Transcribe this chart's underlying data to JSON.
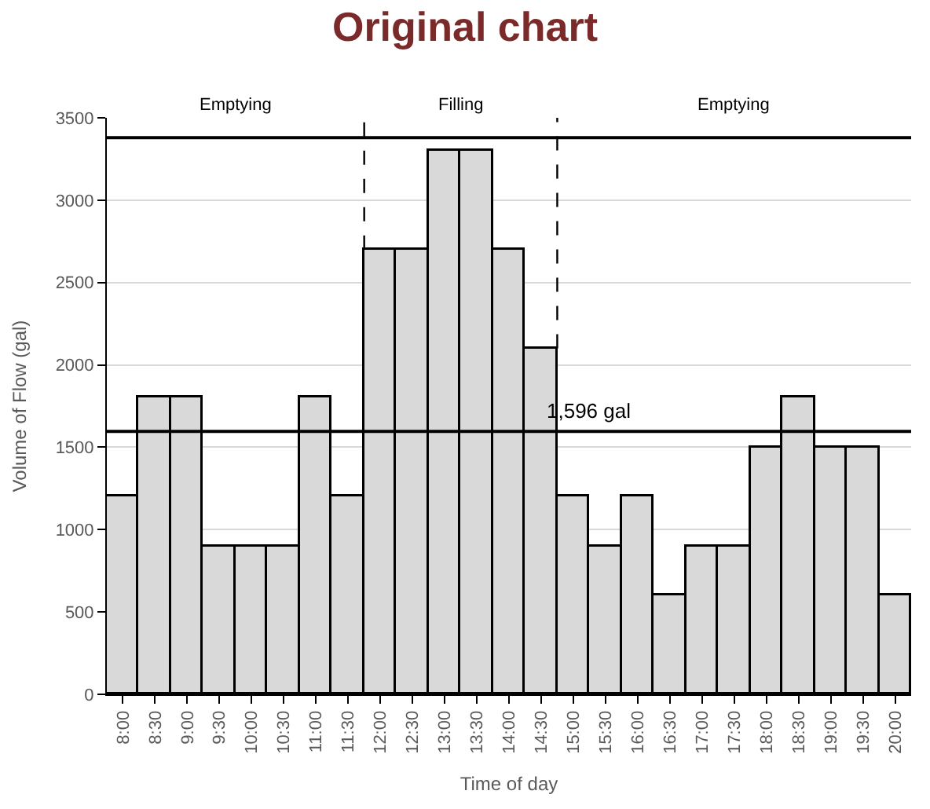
{
  "chart_data": {
    "type": "bar",
    "title": "Original chart",
    "xlabel": "Time of day",
    "ylabel": "Volume of Flow (gal)",
    "x": [
      8,
      8.5,
      9,
      9.5,
      10,
      10.5,
      11,
      11.5,
      12,
      12.5,
      13,
      13.5,
      14,
      14.5,
      15,
      15.5,
      16,
      16.5,
      17,
      17.5,
      18,
      18.5,
      19,
      19.5,
      20
    ],
    "values": [
      1200,
      1800,
      1800,
      900,
      900,
      900,
      1800,
      1200,
      2700,
      2700,
      3300,
      3300,
      2700,
      2100,
      1200,
      900,
      1200,
      600,
      900,
      900,
      1500,
      1800,
      1500,
      1500,
      600
    ],
    "color": "#d9d9d9",
    "xlim": [
      7.75,
      20.25
    ],
    "xticks": [
      {
        "value": 8,
        "label": "8:00"
      },
      {
        "value": 8.5,
        "label": "8:30"
      },
      {
        "value": 9,
        "label": "9:00"
      },
      {
        "value": 9.5,
        "label": "9:30"
      },
      {
        "value": 10,
        "label": "10:00"
      },
      {
        "value": 10.5,
        "label": "10:30"
      },
      {
        "value": 11,
        "label": "11:00"
      },
      {
        "value": 11.5,
        "label": "11:30"
      },
      {
        "value": 12,
        "label": "12:00"
      },
      {
        "value": 12.5,
        "label": "12:30"
      },
      {
        "value": 13,
        "label": "13:00"
      },
      {
        "value": 13.5,
        "label": "13:30"
      },
      {
        "value": 14,
        "label": "14:00"
      },
      {
        "value": 14.5,
        "label": "14:30"
      },
      {
        "value": 15,
        "label": "15:00"
      },
      {
        "value": 15.5,
        "label": "15:30"
      },
      {
        "value": 16,
        "label": "16:00"
      },
      {
        "value": 16.5,
        "label": "16:30"
      },
      {
        "value": 17,
        "label": "17:00"
      },
      {
        "value": 17.5,
        "label": "17:30"
      },
      {
        "value": 18,
        "label": "18:00"
      },
      {
        "value": 18.5,
        "label": "18:30"
      },
      {
        "value": 19,
        "label": "19:00"
      },
      {
        "value": 19.5,
        "label": "19:30"
      },
      {
        "value": 20,
        "label": "20:00"
      }
    ],
    "ylim": [
      0,
      3500
    ],
    "yticks": [
      0,
      500,
      1000,
      1500,
      2000,
      2500,
      3000,
      3500
    ],
    "grid": "y",
    "ref_lines": [
      {
        "axis": "y",
        "value": 1596,
        "label": "1,596 gal",
        "color": "#000000"
      },
      {
        "axis": "y",
        "value": 3380,
        "label": null,
        "color": "#000000"
      },
      {
        "axis": "x",
        "value": 11.75,
        "label": null,
        "color": "#000000",
        "line_style": "dashed"
      },
      {
        "axis": "x",
        "value": 14.75,
        "label": null,
        "color": "#000000",
        "line_style": "dashed"
      }
    ],
    "annotations": [
      "Emptying",
      "Filling",
      "Emptying"
    ]
  }
}
